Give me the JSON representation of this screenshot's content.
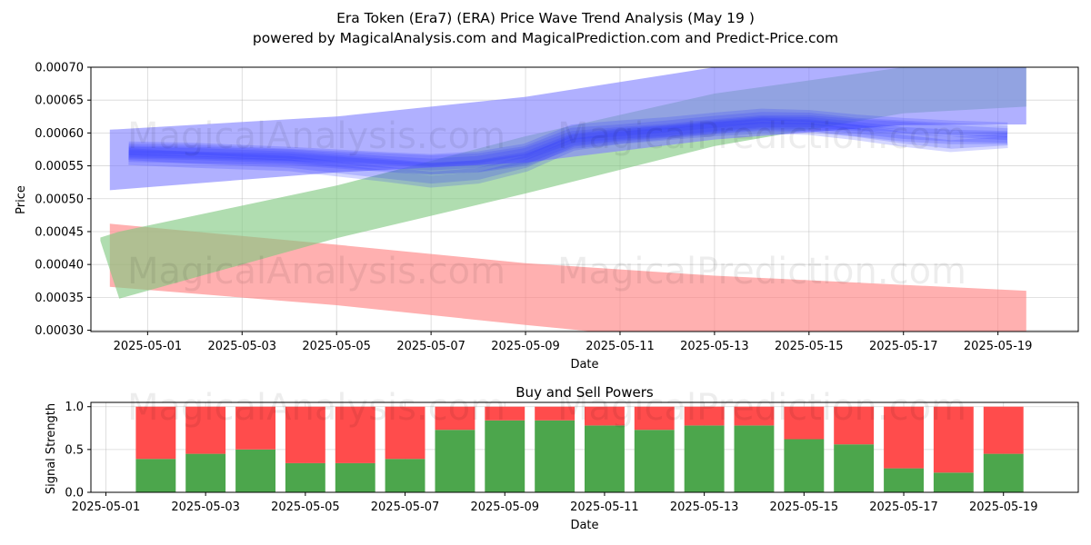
{
  "header": {
    "title": "Era Token (Era7) (ERA) Price Wave Trend Analysis (May 19 )",
    "subtitle": "powered by MagicalAnalysis.com and MagicalPrediction.com and Predict-Price.com"
  },
  "watermarks": [
    "MagicalAnalysis.com",
    "MagicalPrediction.com"
  ],
  "chart_data": [
    {
      "type": "area",
      "title": "",
      "xlabel": "Date",
      "ylabel": "Price",
      "xlim": [
        "2025-04-29.8",
        "2025-05-20.7"
      ],
      "ylim": [
        0.000298,
        0.0007
      ],
      "grid": true,
      "x_ticks": [
        "2025-05-01",
        "2025-05-03",
        "2025-05-05",
        "2025-05-07",
        "2025-05-09",
        "2025-05-11",
        "2025-05-13",
        "2025-05-15",
        "2025-05-17",
        "2025-05-19"
      ],
      "y_ticks": [
        "0.00030",
        "0.00035",
        "0.00040",
        "0.00045",
        "0.00050",
        "0.00055",
        "0.00060",
        "0.00065",
        "0.00070"
      ],
      "bands": [
        {
          "color": "#ff8080",
          "x": [
            "2025-04-30.2",
            "2025-05-05",
            "2025-05-09",
            "2025-05-13",
            "2025-05-17",
            "2025-05-19.6"
          ],
          "upper": [
            0.000462,
            0.00043,
            0.000402,
            0.000383,
            0.000369,
            0.00036
          ],
          "lower": [
            0.000366,
            0.000338,
            0.000308,
            0.00028,
            0.00026,
            0.00025
          ]
        },
        {
          "color": "#80c880",
          "x": [
            "2025-04-30",
            "2025-04-30.4",
            "2025-05-05",
            "2025-05-09",
            "2025-05-13",
            "2025-05-17",
            "2025-05-19.6"
          ],
          "upper": [
            0.000441,
            0.00045,
            0.00052,
            0.000595,
            0.00066,
            0.0007,
            0.000718
          ],
          "lower": [
            0.000436,
            0.000348,
            0.00044,
            0.000508,
            0.00058,
            0.00063,
            0.00064
          ]
        },
        {
          "color": "#8080ff",
          "x": [
            "2025-04-30.2",
            "2025-05-05",
            "2025-05-09",
            "2025-05-13",
            "2025-05-17",
            "2025-05-19.6"
          ],
          "upper": [
            0.000605,
            0.000625,
            0.000655,
            0.0007,
            0.00073,
            0.000745
          ],
          "lower": [
            0.000513,
            0.00054,
            0.000555,
            0.00059,
            0.000612,
            0.000613
          ]
        }
      ],
      "wave_lines": {
        "color": "#2b38ff",
        "x": [
          "2025-04-30.6",
          "2025-05-02",
          "2025-05-04",
          "2025-05-06",
          "2025-05-07",
          "2025-05-08",
          "2025-05-09",
          "2025-05-10",
          "2025-05-11",
          "2025-05-12",
          "2025-05-13",
          "2025-05-14",
          "2025-05-15",
          "2025-05-16",
          "2025-05-17",
          "2025-05-18",
          "2025-05-19.2"
        ],
        "series": [
          [
            0.000572,
            0.00057,
            0.000566,
            0.000556,
            0.000552,
            0.000556,
            0.000568,
            0.000594,
            0.0006,
            0.000605,
            0.000612,
            0.000618,
            0.000618,
            0.000612,
            0.000608,
            0.000603,
            0.000598
          ],
          [
            0.000568,
            0.000562,
            0.000556,
            0.00054,
            0.000532,
            0.000538,
            0.000556,
            0.000588,
            0.000596,
            0.000602,
            0.000608,
            0.000614,
            0.000612,
            0.000604,
            0.000596,
            0.000592,
            0.000592
          ],
          [
            0.000575,
            0.000573,
            0.000567,
            0.00056,
            0.000557,
            0.00056,
            0.000571,
            0.000599,
            0.000604,
            0.00061,
            0.000617,
            0.000623,
            0.000622,
            0.000614,
            0.00061,
            0.000606,
            0.000602
          ],
          [
            0.00056,
            0.000556,
            0.000551,
            0.000535,
            0.000526,
            0.000532,
            0.00055,
            0.000582,
            0.000592,
            0.000598,
            0.000604,
            0.000608,
            0.000606,
            0.000598,
            0.000588,
            0.00058,
            0.000586
          ],
          [
            0.000565,
            0.000563,
            0.00056,
            0.00055,
            0.000545,
            0.00055,
            0.000562,
            0.00059,
            0.000598,
            0.000603,
            0.00061,
            0.000616,
            0.000615,
            0.000608,
            0.0006,
            0.000596,
            0.000594
          ],
          [
            0.00057,
            0.000568,
            0.000563,
            0.000552,
            0.000546,
            0.000549,
            0.000559,
            0.000585,
            0.000593,
            0.0006,
            0.000607,
            0.000612,
            0.00061,
            0.000603,
            0.000593,
            0.000585,
            0.00059
          ],
          [
            0.000578,
            0.000576,
            0.00057,
            0.000562,
            0.000559,
            0.000563,
            0.000575,
            0.000604,
            0.00061,
            0.000615,
            0.000622,
            0.000628,
            0.000626,
            0.000619,
            0.000614,
            0.00061,
            0.000607
          ]
        ]
      }
    },
    {
      "type": "bar",
      "title": "Buy and Sell Powers",
      "xlabel": "Date",
      "ylabel": "Signal Strength",
      "xlim": [
        "2025-04-30.7",
        "2025-05-20.5"
      ],
      "ylim": [
        0,
        1.05
      ],
      "grid": true,
      "x_ticks": [
        "2025-05-01",
        "2025-05-03",
        "2025-05-05",
        "2025-05-07",
        "2025-05-09",
        "2025-05-11",
        "2025-05-13",
        "2025-05-15",
        "2025-05-17",
        "2025-05-19"
      ],
      "y_ticks": [
        "0.0",
        "0.5",
        "1.0"
      ],
      "categories": [
        "2025-05-02",
        "2025-05-03",
        "2025-05-04",
        "2025-05-05",
        "2025-05-06",
        "2025-05-07",
        "2025-05-08",
        "2025-05-09",
        "2025-05-10",
        "2025-05-11",
        "2025-05-12",
        "2025-05-13",
        "2025-05-14",
        "2025-05-15",
        "2025-05-16",
        "2025-05-17",
        "2025-05-18",
        "2025-05-19"
      ],
      "buy_color": "#4ca64c",
      "sell_color": "#ff4c4c",
      "buy_values": [
        0.39,
        0.45,
        0.5,
        0.34,
        0.34,
        0.39,
        0.73,
        0.84,
        0.84,
        0.78,
        0.73,
        0.78,
        0.78,
        0.62,
        0.56,
        0.28,
        0.23,
        0.45
      ],
      "sell_values": [
        0.61,
        0.55,
        0.5,
        0.66,
        0.66,
        0.61,
        0.27,
        0.16,
        0.16,
        0.22,
        0.27,
        0.22,
        0.22,
        0.38,
        0.44,
        0.72,
        0.77,
        0.55
      ]
    }
  ]
}
